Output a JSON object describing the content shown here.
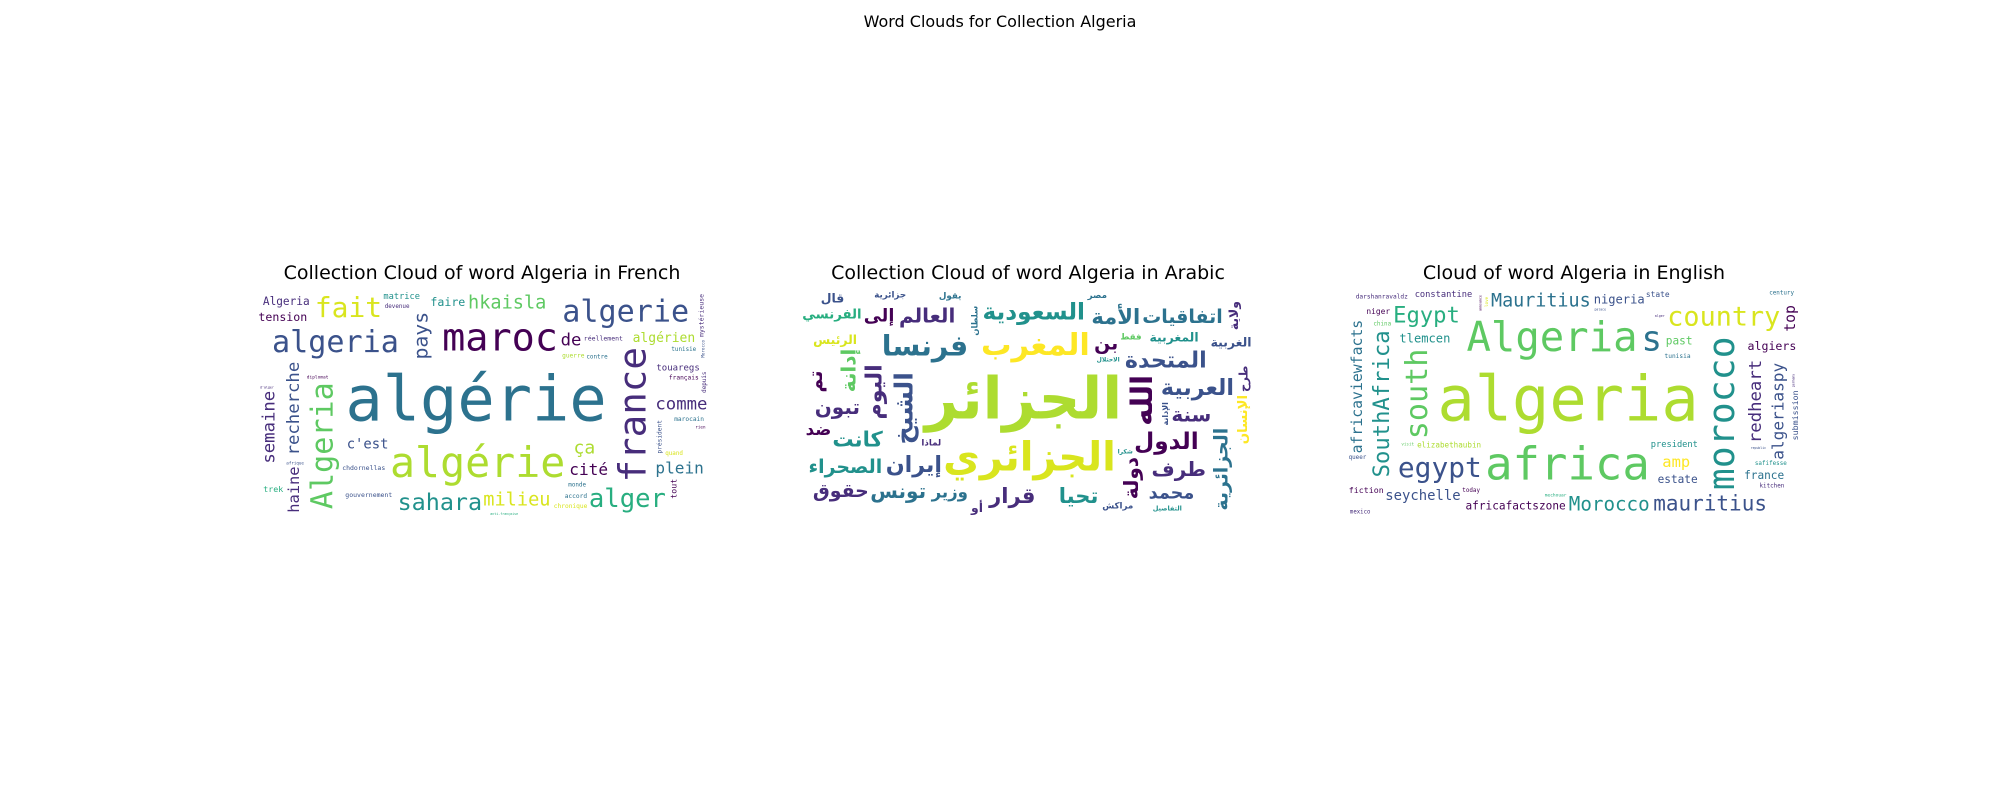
{
  "suptitle": "Word Clouds for Collection Algeria",
  "palette": [
    "#440154",
    "#472d7b",
    "#3b528b",
    "#2c728e",
    "#21918c",
    "#28ae80",
    "#5ec962",
    "#addc30",
    "#d9e51e",
    "#fde725"
  ],
  "chart_data": [
    {
      "type": "wordcloud",
      "title": "Collection Cloud of word Algeria in French",
      "words": [
        {
          "text": "algérie",
          "weight": 100,
          "color": "#2c728e"
        },
        {
          "text": "algérie",
          "weight": 58,
          "color": "#addc30"
        },
        {
          "text": "maroc",
          "weight": 52,
          "color": "#440154"
        },
        {
          "text": "france",
          "weight": 50,
          "color": "#472d7b"
        },
        {
          "text": "algeria",
          "weight": 36,
          "color": "#3b528b"
        },
        {
          "text": "Algeria",
          "weight": 36,
          "color": "#5ec962"
        },
        {
          "text": "algerie",
          "weight": 36,
          "color": "#3b528b"
        },
        {
          "text": "fait",
          "weight": 32,
          "color": "#d9e51e"
        },
        {
          "text": "alger",
          "weight": 28,
          "color": "#28ae80"
        },
        {
          "text": "sahara",
          "weight": 24,
          "color": "#21918c"
        },
        {
          "text": "pays",
          "weight": 18,
          "color": "#3b528b"
        },
        {
          "text": "hkaisla",
          "weight": 16,
          "color": "#5ec962"
        },
        {
          "text": "milieu",
          "weight": 16,
          "color": "#d9e51e"
        },
        {
          "text": "c'est",
          "weight": 16,
          "color": "#3b528b"
        },
        {
          "text": "comme",
          "weight": 14,
          "color": "#472d7b"
        },
        {
          "text": "ça",
          "weight": 15,
          "color": "#addc30"
        },
        {
          "text": "recherche",
          "weight": 14,
          "color": "#3b528b"
        },
        {
          "text": "semaine",
          "weight": 14,
          "color": "#472d7b"
        },
        {
          "text": "algérien",
          "weight": 14,
          "color": "#addc30"
        },
        {
          "text": "touaregs",
          "weight": 12,
          "color": "#472d7b"
        },
        {
          "text": "cité",
          "weight": 12,
          "color": "#440154"
        },
        {
          "text": "gouvernement",
          "weight": 11,
          "color": "#3b528b"
        },
        {
          "text": "haine",
          "weight": 11,
          "color": "#472d7b"
        },
        {
          "text": "tension",
          "weight": 11,
          "color": "#440154"
        },
        {
          "text": "chdornellas",
          "weight": 11,
          "color": "#3b528b"
        },
        {
          "text": "président",
          "weight": 10,
          "color": "#3b528b"
        },
        {
          "text": "Algeria",
          "weight": 10,
          "color": "#472d7b"
        },
        {
          "text": "chronique",
          "weight": 10,
          "color": "#d9e51e"
        },
        {
          "text": "contre",
          "weight": 9,
          "color": "#2c728e"
        },
        {
          "text": "devenue",
          "weight": 9,
          "color": "#472d7b"
        },
        {
          "text": "français",
          "weight": 10,
          "color": "#440154"
        },
        {
          "text": "de",
          "weight": 14,
          "color": "#440154"
        },
        {
          "text": "accord",
          "weight": 10,
          "color": "#2c728e"
        },
        {
          "text": "guerre",
          "weight": 10,
          "color": "#addc30"
        },
        {
          "text": "quand",
          "weight": 9,
          "color": "#d9e51e"
        },
        {
          "text": "trek",
          "weight": 10,
          "color": "#28ae80"
        },
        {
          "text": "tunisie",
          "weight": 9,
          "color": "#2c728e"
        },
        {
          "text": "mystérieuse",
          "weight": 11,
          "color": "#472d7b"
        },
        {
          "text": "tout",
          "weight": 10,
          "color": "#440154"
        },
        {
          "text": "réellement",
          "weight": 11,
          "color": "#472d7b"
        },
        {
          "text": "faire",
          "weight": 11,
          "color": "#21918c"
        },
        {
          "text": "marocain",
          "weight": 10,
          "color": "#2c728e"
        },
        {
          "text": "monde",
          "weight": 9,
          "color": "#2c728e"
        },
        {
          "text": "depuis",
          "weight": 9,
          "color": "#472d7b"
        },
        {
          "text": "anti-française",
          "weight": 9,
          "color": "#28ae80"
        },
        {
          "text": "diplomat",
          "weight": 9,
          "color": "#440154"
        },
        {
          "text": "d'alger",
          "weight": 9,
          "color": "#472d7b"
        },
        {
          "text": "plein",
          "weight": 12,
          "color": "#2c728e"
        },
        {
          "text": "matrice",
          "weight": 11,
          "color": "#21918c"
        },
        {
          "text": "Morocco",
          "weight": 8,
          "color": "#3b528b"
        },
        {
          "text": "rien",
          "weight": 8,
          "color": "#440154"
        },
        {
          "text": "afrique",
          "weight": 8,
          "color": "#3b528b"
        }
      ]
    },
    {
      "type": "wordcloud",
      "title": "Collection Cloud of word Algeria in Arabic",
      "words": [
        {
          "text": "الجزائر",
          "weight": 100,
          "color": "#addc30"
        },
        {
          "text": "الجزائري",
          "weight": 60,
          "color": "#d9e51e"
        },
        {
          "text": "المغرب",
          "weight": 40,
          "color": "#fde725"
        },
        {
          "text": "الله",
          "weight": 38,
          "color": "#440154"
        },
        {
          "text": "فرنسا",
          "weight": 36,
          "color": "#2c728e"
        },
        {
          "text": "الشيخ",
          "weight": 30,
          "color": "#3b528b"
        },
        {
          "text": "السعودية",
          "weight": 26,
          "color": "#21918c"
        },
        {
          "text": "المتحدة",
          "weight": 24,
          "color": "#3b528b"
        },
        {
          "text": "الدول",
          "weight": 26,
          "color": "#440154"
        },
        {
          "text": "العربية",
          "weight": 24,
          "color": "#3b528b"
        },
        {
          "text": "اليوم",
          "weight": 24,
          "color": "#472d7b"
        },
        {
          "text": "إيران",
          "weight": 24,
          "color": "#3b528b"
        },
        {
          "text": "قرار",
          "weight": 22,
          "color": "#472d7b"
        },
        {
          "text": "كانت",
          "weight": 22,
          "color": "#21918c"
        },
        {
          "text": "دولة",
          "weight": 20,
          "color": "#440154"
        },
        {
          "text": "إدانة",
          "weight": 20,
          "color": "#5ec962"
        },
        {
          "text": "تحيا",
          "weight": 22,
          "color": "#21918c"
        },
        {
          "text": "العالم",
          "weight": 20,
          "color": "#472d7b"
        },
        {
          "text": "الصحراء",
          "weight": 18,
          "color": "#21918c"
        },
        {
          "text": "الجزائرية",
          "weight": 18,
          "color": "#2c728e"
        },
        {
          "text": "اتفاقيات",
          "weight": 18,
          "color": "#2c728e"
        },
        {
          "text": "تبون",
          "weight": 20,
          "color": "#472d7b"
        },
        {
          "text": "حقوق",
          "weight": 18,
          "color": "#472d7b"
        },
        {
          "text": "محمد",
          "weight": 16,
          "color": "#3b528b"
        },
        {
          "text": "سنة",
          "weight": 20,
          "color": "#472d7b"
        },
        {
          "text": "طرف",
          "weight": 20,
          "color": "#472d7b"
        },
        {
          "text": "المغربية",
          "weight": 14,
          "color": "#21918c"
        },
        {
          "text": "الفرنسي",
          "weight": 16,
          "color": "#28ae80"
        },
        {
          "text": "وزير",
          "weight": 14,
          "color": "#2c728e"
        },
        {
          "text": "الرئيس",
          "weight": 14,
          "color": "#d9e51e"
        },
        {
          "text": "الإنسان",
          "weight": 16,
          "color": "#fde725"
        },
        {
          "text": "تم",
          "weight": 18,
          "color": "#440154"
        },
        {
          "text": "إلى",
          "weight": 16,
          "color": "#440154"
        },
        {
          "text": "الغربية",
          "weight": 14,
          "color": "#3b528b"
        },
        {
          "text": "مراكش",
          "weight": 12,
          "color": "#3b528b"
        },
        {
          "text": "فقط",
          "weight": 12,
          "color": "#5ec962"
        },
        {
          "text": "ضد",
          "weight": 14,
          "color": "#440154"
        },
        {
          "text": "ولاية",
          "weight": 14,
          "color": "#472d7b"
        },
        {
          "text": "قال",
          "weight": 14,
          "color": "#3b528b"
        },
        {
          "text": "يقول",
          "weight": 12,
          "color": "#2c728e"
        },
        {
          "text": "بن",
          "weight": 18,
          "color": "#440154"
        },
        {
          "text": "جزائرية",
          "weight": 12,
          "color": "#3b528b"
        },
        {
          "text": "تونس",
          "weight": 20,
          "color": "#2c728e"
        },
        {
          "text": "أو",
          "weight": 14,
          "color": "#472d7b"
        },
        {
          "text": "سلطان",
          "weight": 11,
          "color": "#2c728e"
        },
        {
          "text": "طرح",
          "weight": 12,
          "color": "#472d7b"
        },
        {
          "text": "شكرا",
          "weight": 10,
          "color": "#21918c"
        },
        {
          "text": "الاحتلال",
          "weight": 10,
          "color": "#21918c"
        },
        {
          "text": "الإدانة",
          "weight": 10,
          "color": "#3b528b"
        },
        {
          "text": "مصر",
          "weight": 12,
          "color": "#2c728e"
        },
        {
          "text": "لماذا",
          "weight": 12,
          "color": "#472d7b"
        },
        {
          "text": "التفاصيل",
          "weight": 12,
          "color": "#21918c"
        },
        {
          "text": "الأمة",
          "weight": 22,
          "color": "#2c728e"
        }
      ]
    },
    {
      "type": "wordcloud",
      "title": "Cloud of word Algeria in English",
      "words": [
        {
          "text": "algeria",
          "weight": 100,
          "color": "#addc30"
        },
        {
          "text": "africa",
          "weight": 66,
          "color": "#5ec962"
        },
        {
          "text": "Algeria",
          "weight": 56,
          "color": "#5ec962"
        },
        {
          "text": "morocco",
          "weight": 48,
          "color": "#21918c"
        },
        {
          "text": "south",
          "weight": 36,
          "color": "#5ec962"
        },
        {
          "text": "s",
          "weight": 44,
          "color": "#2c728e"
        },
        {
          "text": "country",
          "weight": 30,
          "color": "#d9e51e"
        },
        {
          "text": "egypt",
          "weight": 32,
          "color": "#3b528b"
        },
        {
          "text": "Morocco",
          "weight": 28,
          "color": "#21918c"
        },
        {
          "text": "Mauritius",
          "weight": 26,
          "color": "#2c728e"
        },
        {
          "text": "mauritius",
          "weight": 20,
          "color": "#3b528b"
        },
        {
          "text": "SouthAfrica",
          "weight": 22,
          "color": "#21918c"
        },
        {
          "text": "Egypt",
          "weight": 22,
          "color": "#28ae80"
        },
        {
          "text": "africafactszone",
          "weight": 18,
          "color": "#440154"
        },
        {
          "text": "seychelle",
          "weight": 16,
          "color": "#3b528b"
        },
        {
          "text": "elizabethaubin",
          "weight": 15,
          "color": "#addc30"
        },
        {
          "text": "redheart",
          "weight": 14,
          "color": "#472d7b"
        },
        {
          "text": "algeriaspy",
          "weight": 12,
          "color": "#3b528b"
        },
        {
          "text": "tlemcen",
          "weight": 12,
          "color": "#21918c"
        },
        {
          "text": "nigeria",
          "weight": 12,
          "color": "#3b528b"
        },
        {
          "text": "constantine",
          "weight": 11,
          "color": "#472d7b"
        },
        {
          "text": "algiers",
          "weight": 11,
          "color": "#440154"
        },
        {
          "text": "africaviewfacts",
          "weight": 10,
          "color": "#2c728e"
        },
        {
          "text": "darshanravaldz",
          "weight": 10,
          "color": "#472d7b"
        },
        {
          "text": "france",
          "weight": 10,
          "color": "#2c728e"
        },
        {
          "text": "submission",
          "weight": 10,
          "color": "#3b528b"
        },
        {
          "text": "estate",
          "weight": 10,
          "color": "#3b528b"
        },
        {
          "text": "president",
          "weight": 11,
          "color": "#21918c"
        },
        {
          "text": "tunisia",
          "weight": 10,
          "color": "#2c728e"
        },
        {
          "text": "fiction",
          "weight": 10,
          "color": "#440154"
        },
        {
          "text": "today",
          "weight": 9,
          "color": "#440154"
        },
        {
          "text": "safifesse",
          "weight": 9,
          "color": "#21918c"
        },
        {
          "text": "republic",
          "weight": 8,
          "color": "#3b528b"
        },
        {
          "text": "kitchen",
          "weight": 9,
          "color": "#472d7b"
        },
        {
          "text": "niger",
          "weight": 9,
          "color": "#440154"
        },
        {
          "text": "amp",
          "weight": 11,
          "color": "#fde725"
        },
        {
          "text": "queer",
          "weight": 9,
          "color": "#3b528b"
        },
        {
          "text": "announce",
          "weight": 9,
          "color": "#440154"
        },
        {
          "text": "mechouar",
          "weight": 9,
          "color": "#28ae80"
        },
        {
          "text": "china",
          "weight": 9,
          "color": "#5ec962"
        },
        {
          "text": "germany",
          "weight": 8,
          "color": "#472d7b"
        },
        {
          "text": "top",
          "weight": 10,
          "color": "#440154"
        },
        {
          "text": "state",
          "weight": 9,
          "color": "#3b528b"
        },
        {
          "text": "alger",
          "weight": 9,
          "color": "#472d7b"
        },
        {
          "text": "palace",
          "weight": 8,
          "color": "#3b528b"
        },
        {
          "text": "mexico",
          "weight": 8,
          "color": "#472d7b"
        },
        {
          "text": "past",
          "weight": 10,
          "color": "#5ec962"
        },
        {
          "text": "jazairculture",
          "weight": 8,
          "color": "#472d7b"
        },
        {
          "text": "love",
          "weight": 8,
          "color": "#d9e51e"
        },
        {
          "text": "century",
          "weight": 9,
          "color": "#2c728e"
        },
        {
          "text": "visit",
          "weight": 8,
          "color": "#5ec962"
        }
      ]
    }
  ]
}
